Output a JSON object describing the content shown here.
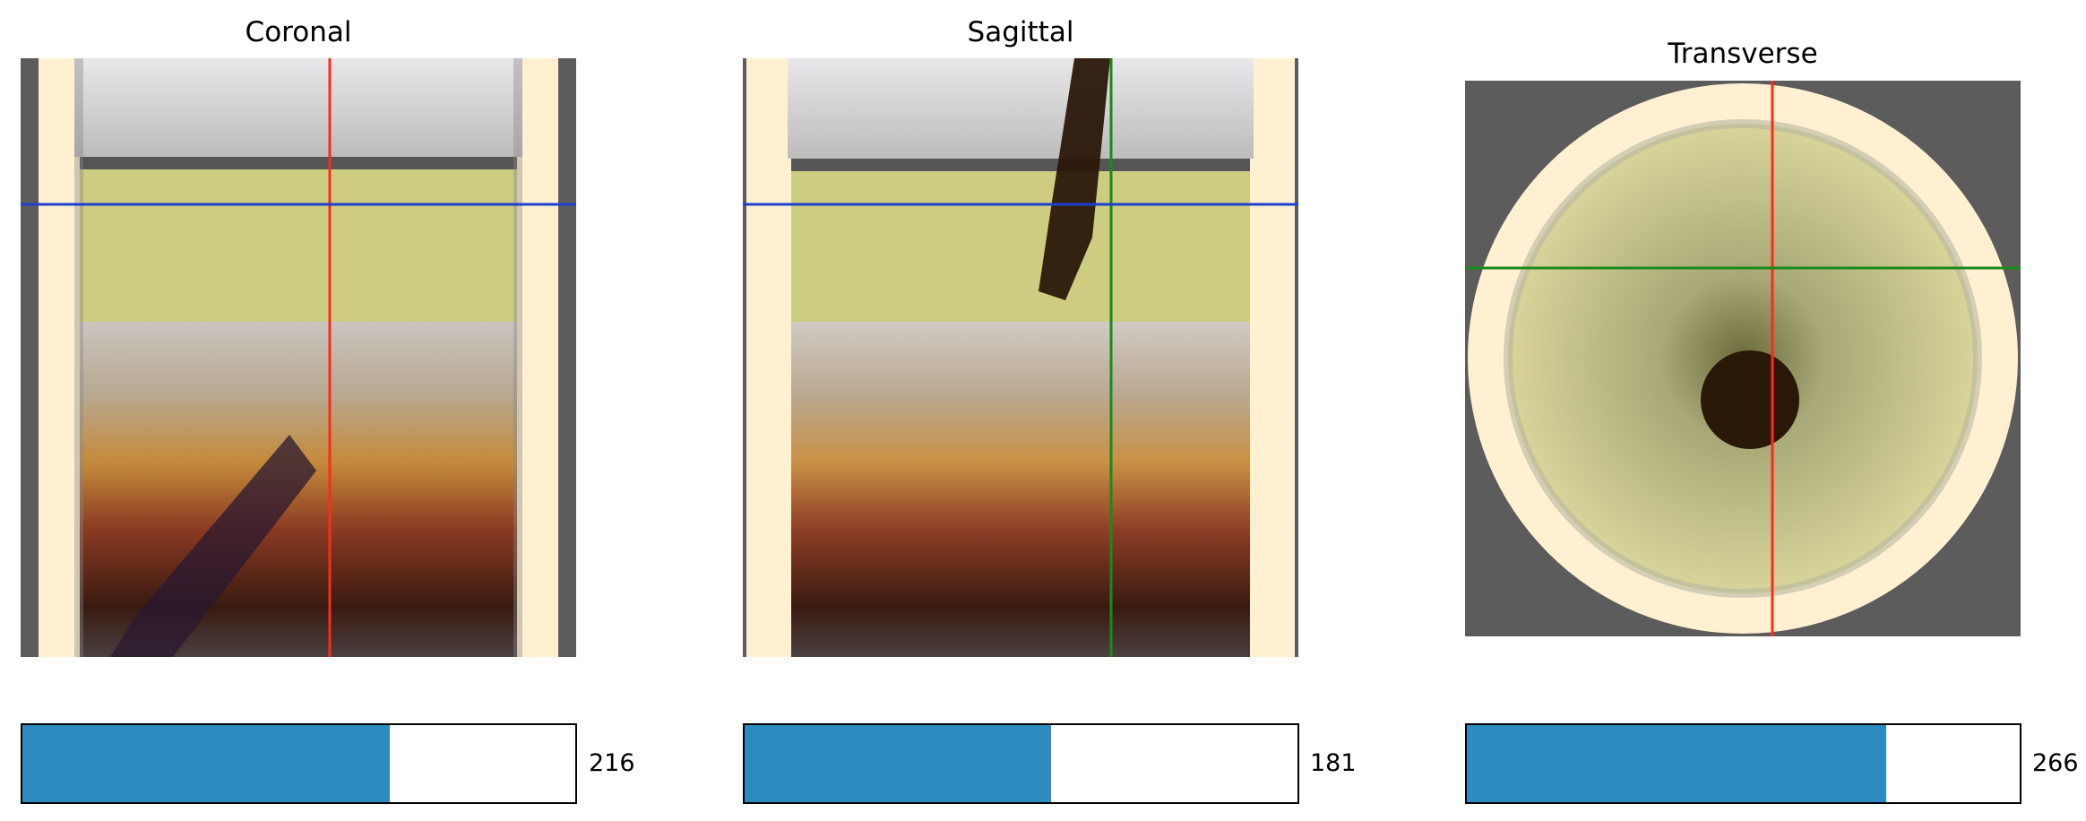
{
  "panels": [
    {
      "title": "Coronal",
      "slider": {
        "value": "216",
        "fraction": 0.665
      }
    },
    {
      "title": "Sagittal",
      "slider": {
        "value": "181",
        "fraction": 0.555
      }
    },
    {
      "title": "Transverse",
      "slider": {
        "value": "266",
        "fraction": 0.758
      }
    }
  ],
  "colors": {
    "background": "#5c5c5c",
    "glass": "#fff0d2",
    "foam": "#c8c878",
    "slider_fill": "#2e8bc0",
    "crosshair_red": "#ff2a1a",
    "crosshair_blue": "#1f3fcf",
    "crosshair_green": "#1a8a1a"
  }
}
